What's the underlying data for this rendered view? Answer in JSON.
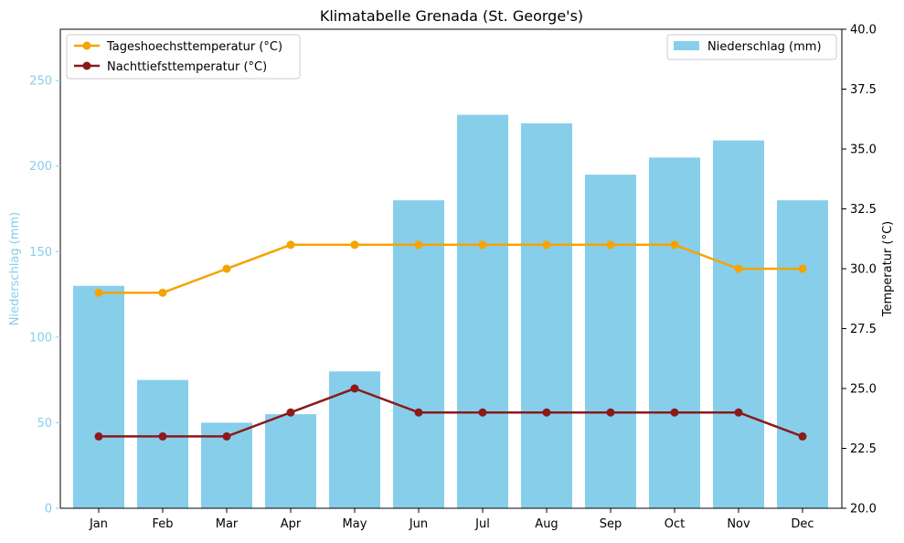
{
  "chart_data": {
    "type": "bar",
    "title": "Klimatabelle Grenada (St. George's)",
    "categories": [
      "Jan",
      "Feb",
      "Mar",
      "Apr",
      "May",
      "Jun",
      "Jul",
      "Aug",
      "Sep",
      "Oct",
      "Nov",
      "Dec"
    ],
    "left_axis": {
      "label": "Niederschlag (mm)",
      "ylim": [
        0,
        280
      ],
      "ticks": [
        "0",
        "50",
        "100",
        "150",
        "200",
        "250"
      ],
      "tick_values": [
        0,
        50,
        100,
        150,
        200,
        250
      ],
      "color": "#87ceeb"
    },
    "right_axis": {
      "label": "Temperatur (°C)",
      "ylim": [
        20,
        40
      ],
      "ticks": [
        "20.0",
        "22.5",
        "25.0",
        "27.5",
        "30.0",
        "32.5",
        "35.0",
        "37.5",
        "40.0"
      ],
      "tick_values": [
        20,
        22.5,
        25,
        27.5,
        30,
        32.5,
        35,
        37.5,
        40
      ]
    },
    "bars": {
      "name": "Niederschlag (mm)",
      "color": "#87ceeb",
      "values": [
        130,
        75,
        50,
        55,
        80,
        180,
        230,
        225,
        195,
        205,
        215,
        180
      ]
    },
    "lines": [
      {
        "name": "Tageshoechsttemperatur (°C)",
        "color": "#f5a300",
        "values": [
          29,
          29,
          30,
          31,
          31,
          31,
          31,
          31,
          31,
          31,
          30,
          30
        ]
      },
      {
        "name": "Nachttiefsttemperatur (°C)",
        "color": "#8b1a1a",
        "values": [
          23,
          23,
          23,
          24,
          25,
          24,
          24,
          24,
          24,
          24,
          24,
          23
        ]
      }
    ],
    "legend_left_placement": "top-left",
    "legend_right_placement": "top-right",
    "grid": false
  }
}
